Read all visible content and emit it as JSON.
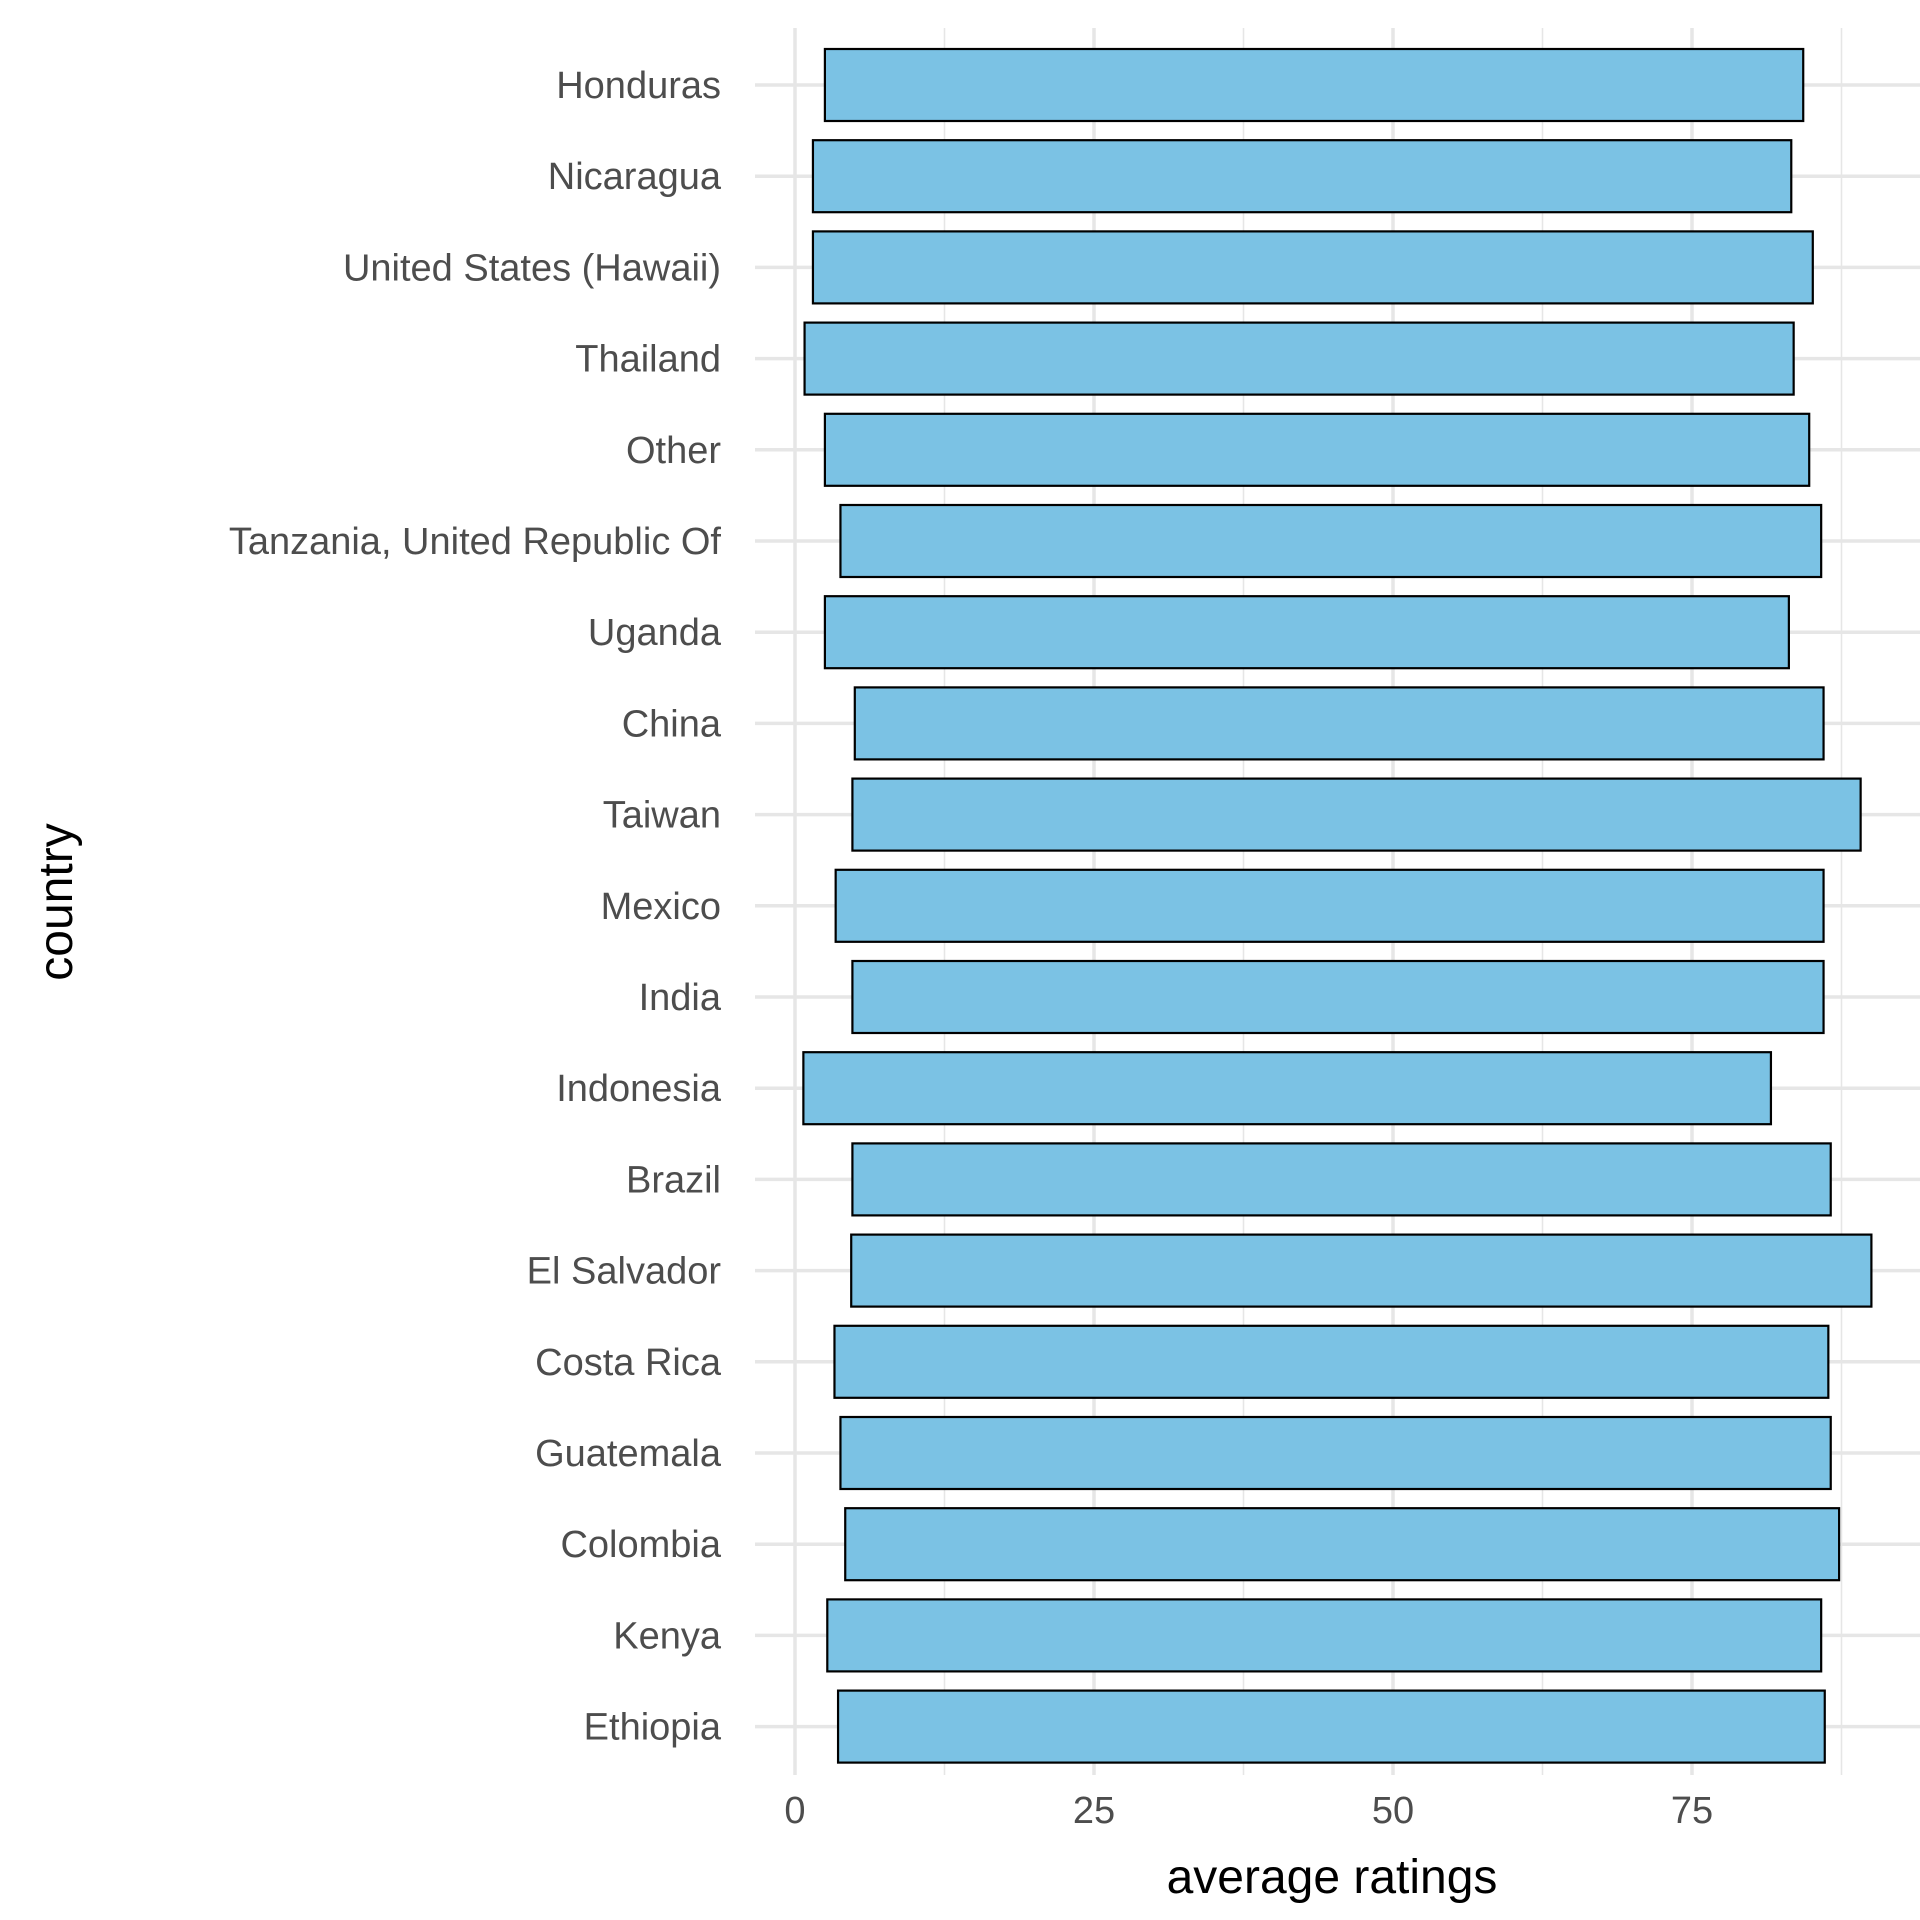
{
  "chart_data": {
    "type": "bar",
    "orientation": "horizontal",
    "xlabel": "average ratings",
    "ylabel": "country",
    "xlim": [
      0,
      90
    ],
    "xticks": [
      0,
      25,
      50,
      75
    ],
    "grid": true,
    "legend": "none",
    "bar_fill": "#7bc2e4",
    "bar_stroke": "#000000",
    "grid_color": "#e6e6e6",
    "bars": [
      {
        "category": "Honduras",
        "start": 2.5,
        "end": 84.3
      },
      {
        "category": "Nicaragua",
        "start": 1.5,
        "end": 83.3
      },
      {
        "category": "United States (Hawaii)",
        "start": 1.5,
        "end": 85.1
      },
      {
        "category": "Thailand",
        "start": 0.8,
        "end": 83.5
      },
      {
        "category": "Other",
        "start": 2.5,
        "end": 84.8
      },
      {
        "category": "Tanzania, United Republic Of",
        "start": 3.8,
        "end": 85.8
      },
      {
        "category": "Uganda",
        "start": 2.5,
        "end": 83.1
      },
      {
        "category": "China",
        "start": 5.0,
        "end": 86.0
      },
      {
        "category": "Taiwan",
        "start": 4.8,
        "end": 89.1
      },
      {
        "category": "Mexico",
        "start": 3.4,
        "end": 86.0
      },
      {
        "category": "India",
        "start": 4.8,
        "end": 86.0
      },
      {
        "category": "Indonesia",
        "start": 0.7,
        "end": 81.6
      },
      {
        "category": "Brazil",
        "start": 4.8,
        "end": 86.6
      },
      {
        "category": "El Salvador",
        "start": 4.7,
        "end": 90.0
      },
      {
        "category": "Costa Rica",
        "start": 3.3,
        "end": 86.4
      },
      {
        "category": "Guatemala",
        "start": 3.8,
        "end": 86.6
      },
      {
        "category": "Colombia",
        "start": 4.2,
        "end": 87.3
      },
      {
        "category": "Kenya",
        "start": 2.7,
        "end": 85.8
      },
      {
        "category": "Ethiopia",
        "start": 3.6,
        "end": 86.1
      }
    ]
  }
}
